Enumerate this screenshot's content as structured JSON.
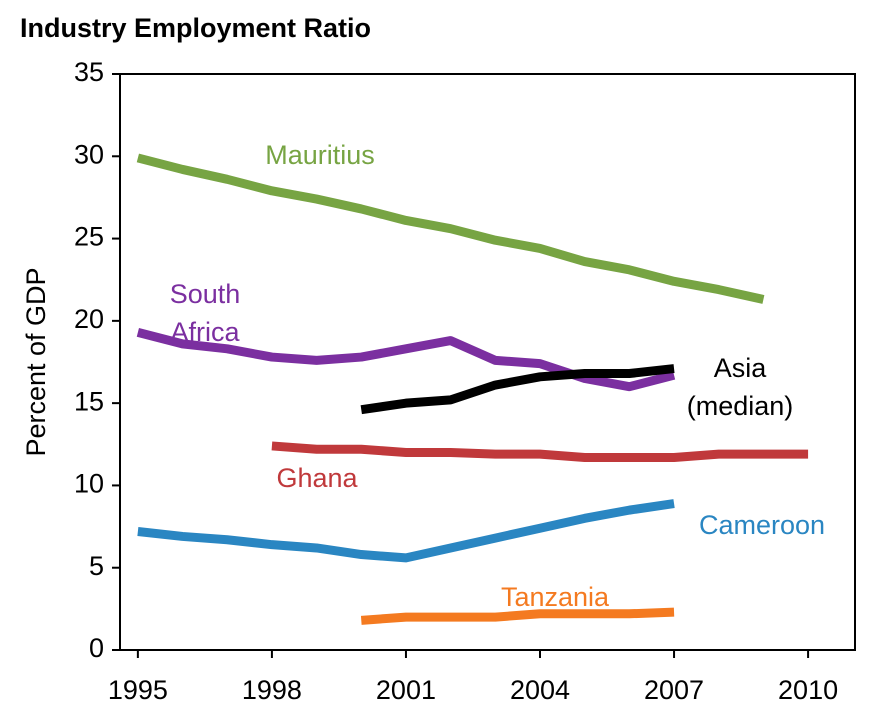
{
  "chart_data": {
    "type": "line",
    "title": "Industry Employment Ratio",
    "y_label": "Percent of GDP",
    "x": [
      1995,
      1996,
      1997,
      1998,
      1999,
      2000,
      2001,
      2002,
      2003,
      2004,
      2005,
      2006,
      2007,
      2008,
      2009,
      2010
    ],
    "xlim": [
      1994.6,
      2011.05
    ],
    "xticks": [
      1995,
      1998,
      2001,
      2004,
      2007,
      2010
    ],
    "ylim": [
      0,
      35
    ],
    "yticks": [
      0,
      5,
      10,
      15,
      20,
      25,
      30,
      35
    ],
    "series": [
      {
        "name": "Mauritius",
        "color": "#77a443",
        "values": [
          29.9,
          29.2,
          28.6,
          27.9,
          27.4,
          26.8,
          26.1,
          25.6,
          24.9,
          24.4,
          23.6,
          23.1,
          22.4,
          21.9,
          21.3,
          null
        ]
      },
      {
        "name": "South Africa",
        "color": "#7b2fa0",
        "values": [
          19.3,
          18.6,
          18.3,
          17.8,
          17.6,
          17.8,
          18.3,
          18.8,
          17.6,
          17.4,
          16.5,
          16.0,
          16.7,
          null,
          null,
          null
        ]
      },
      {
        "name": "Asia (median)",
        "color": "#000000",
        "values": [
          null,
          null,
          null,
          null,
          null,
          14.6,
          15.0,
          15.2,
          16.1,
          16.6,
          16.8,
          16.8,
          17.1,
          null,
          null,
          null
        ]
      },
      {
        "name": "Ghana",
        "color": "#c0393b",
        "values": [
          null,
          null,
          null,
          12.4,
          12.2,
          12.2,
          12.0,
          12.0,
          11.9,
          11.9,
          11.7,
          11.7,
          11.7,
          11.9,
          11.9,
          11.9
        ]
      },
      {
        "name": "Cameroon",
        "color": "#2a86c2",
        "values": [
          7.2,
          6.9,
          6.7,
          6.4,
          6.2,
          5.8,
          5.6,
          6.2,
          6.8,
          7.4,
          8.0,
          8.5,
          8.9,
          null,
          null,
          null
        ]
      },
      {
        "name": "Tanzania",
        "color": "#f47a20",
        "values": [
          null,
          null,
          null,
          null,
          null,
          1.8,
          2.0,
          2.0,
          2.0,
          2.2,
          2.2,
          2.2,
          2.3,
          null,
          null,
          null
        ]
      }
    ]
  }
}
